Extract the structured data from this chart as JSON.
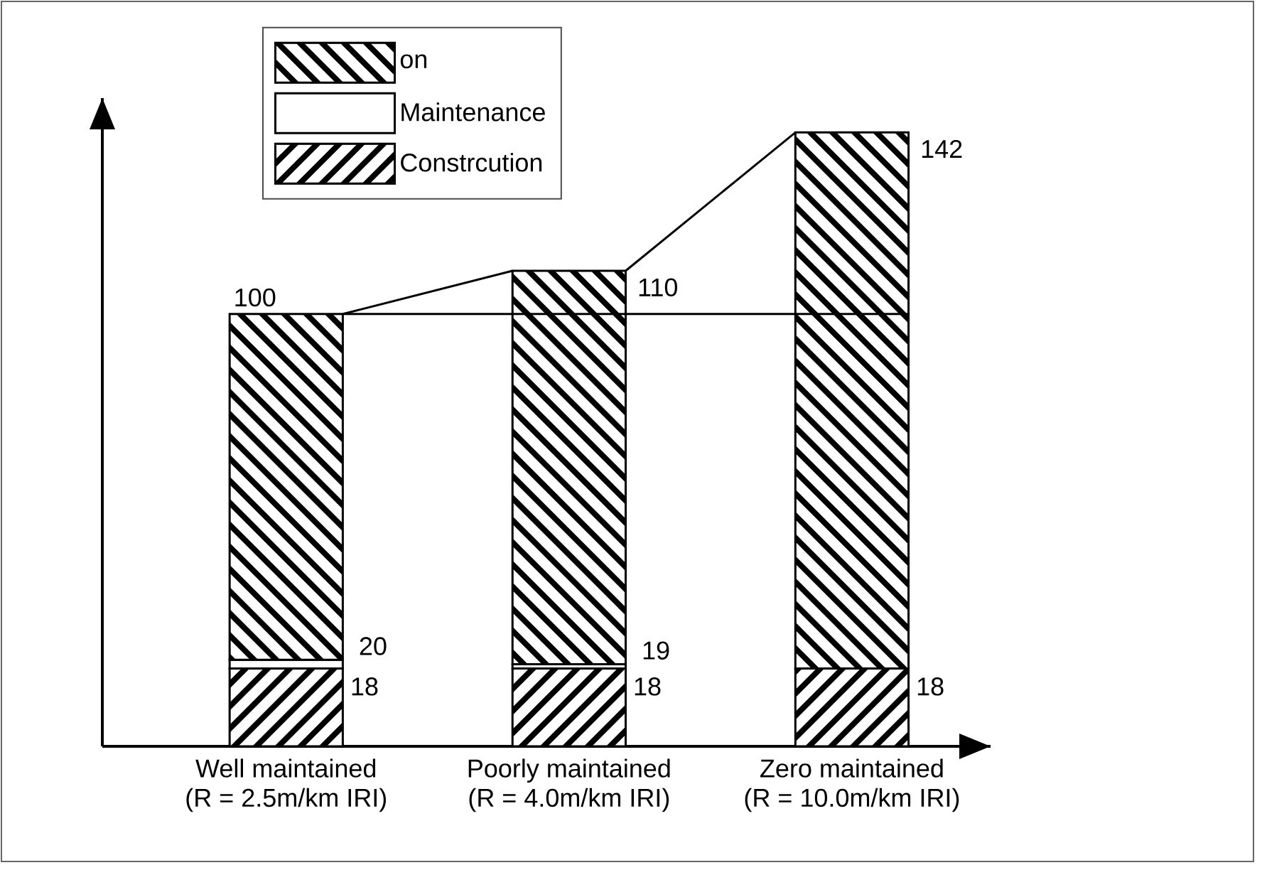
{
  "chart_data": {
    "type": "bar",
    "stacked": true,
    "categories": [
      "Well maintained\n(R = 2.5m/km IRI)",
      "Poorly maintained\n(R = 4.0m/km IRI)",
      "Zero maintained\n(R = 10.0m/km IRI)"
    ],
    "series": [
      {
        "name": "Constrcution",
        "color": "#000000",
        "values": [
          18,
          18,
          18
        ],
        "value_labels": [
          "18",
          "18",
          "18"
        ]
      },
      {
        "name": "Maintenance",
        "color": "#ffffff",
        "values": [
          2,
          1,
          null
        ]
      },
      {
        "name": "on",
        "color": "#000000",
        "values": [
          80,
          91,
          124
        ]
      }
    ],
    "totals": [
      "100",
      "110",
      "142"
    ],
    "annotations": [
      {
        "text": "20",
        "x": "Well maintained\n(R = 2.5m/km IRI)",
        "y": 20
      },
      {
        "text": "19",
        "x": "Poorly maintained\n(R = 4.0m/km IRI)",
        "y": 19
      }
    ],
    "ref_lines": [
      {
        "axis": "y",
        "value": 100,
        "color": "#000000"
      }
    ],
    "legend": "top",
    "tick_labels": "x"
  }
}
